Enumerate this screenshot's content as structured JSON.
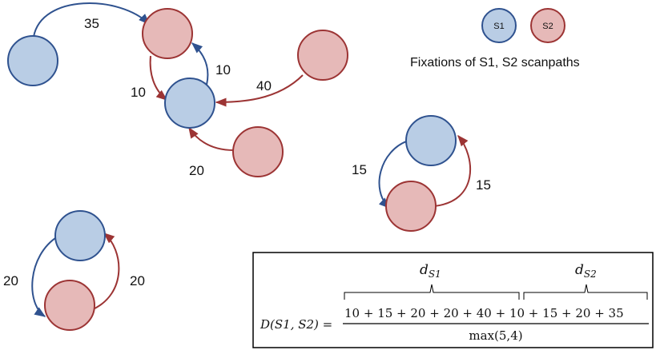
{
  "colors": {
    "s1_fill": "#b9cde5",
    "s1_stroke": "#2f528f",
    "s2_fill": "#e6b9b8",
    "s2_stroke": "#9c3434"
  },
  "legend": {
    "s1": "S1",
    "s2": "S2",
    "caption": "Fixations of S1, S2 scanpaths"
  },
  "edges": {
    "e35": "35",
    "e10a": "10",
    "e10b": "10",
    "e40": "40",
    "e20c": "20",
    "e15a": "15",
    "e15b": "15",
    "e20a": "20",
    "e20b": "20"
  },
  "formula": {
    "d1_base": "d",
    "d1_sub": "S1",
    "d2_base": "d",
    "d2_sub": "S2",
    "lhs": "D(S1, S2) =",
    "numerator": "10 +  15 + 20 + 20 + 40 + 10 + 15 + 20 + 35",
    "denominator": "max(5,4)"
  }
}
